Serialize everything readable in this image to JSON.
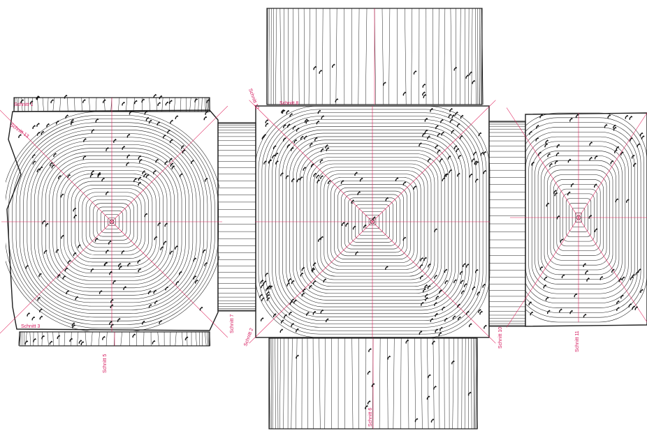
{
  "colors": {
    "contour": "#1e1e1e",
    "axis": "#e0245e",
    "label": "#d4145a",
    "marker": "#111111",
    "background": "#ffffff"
  },
  "labels": {
    "section_top": "Schnitt 8",
    "section_upper_left": "Schnitt 12",
    "section_left_top": "Schnitt 13",
    "section_left_mid": "Schnitt 1",
    "section_lower_left": "Schnitt 3",
    "section_left_bottom": "Schnitt 5",
    "section_mid_left": "Schnitt 7",
    "section_center_low": "Schnitt 2",
    "section_bottom": "Schnitt 6",
    "section_right_low": "Schnitt 10",
    "section_far_right": "Schnitt 11"
  }
}
